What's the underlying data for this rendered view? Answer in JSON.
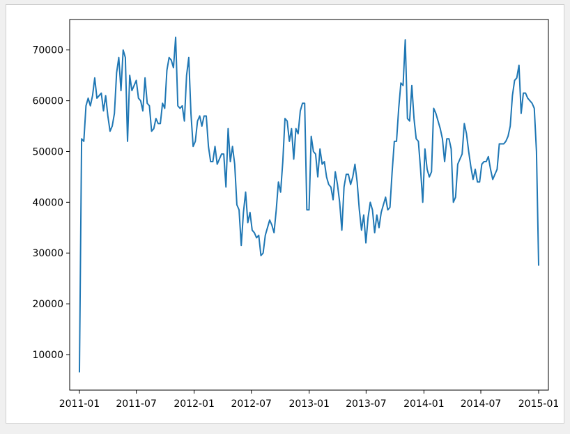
{
  "chart_data": {
    "type": "line",
    "title": "",
    "xlabel": "",
    "ylabel": "",
    "x_start": "2011-01-01",
    "x_end": "2015-01-01",
    "xlim": [
      "2010-12-01",
      "2015-02-01"
    ],
    "ylim": [
      3000,
      76000
    ],
    "x_tick_labels": [
      "2011-01",
      "2011-07",
      "2012-01",
      "2012-07",
      "2013-01",
      "2013-07",
      "2014-01",
      "2014-07",
      "2015-01"
    ],
    "x_tick_dates": [
      "2011-01-01",
      "2011-07-01",
      "2012-01-01",
      "2012-07-01",
      "2013-01-01",
      "2013-07-01",
      "2014-01-01",
      "2014-07-01",
      "2015-01-01"
    ],
    "y_ticks": [
      10000,
      20000,
      30000,
      40000,
      50000,
      60000,
      70000
    ],
    "y_tick_labels": [
      "10000",
      "20000",
      "30000",
      "40000",
      "50000",
      "60000",
      "70000"
    ],
    "grid": false,
    "line_color": "#1f77b4",
    "series": [
      {
        "values": [
          6500,
          52500,
          52000,
          59000,
          60500,
          59000,
          61000,
          64500,
          60500,
          61000,
          61500,
          58000,
          61000,
          57000,
          54000,
          55000,
          57500,
          65500,
          68500,
          62000,
          70000,
          68500,
          52000,
          65000,
          62000,
          63000,
          64000,
          60500,
          60000,
          58000,
          64500,
          59500,
          59000,
          54000,
          54500,
          56500,
          55500,
          55500,
          59500,
          58500,
          66000,
          68500,
          68000,
          66500,
          72500,
          59000,
          58500,
          59000,
          56000,
          65000,
          68500,
          57500,
          51000,
          52000,
          56000,
          57000,
          55000,
          57000,
          57000,
          51000,
          48000,
          48000,
          51000,
          47500,
          48500,
          49500,
          49500,
          43000,
          54500,
          48000,
          51000,
          47500,
          39500,
          38500,
          31500,
          38000,
          42000,
          36000,
          38000,
          34500,
          34000,
          33000,
          33500,
          29500,
          30000,
          33500,
          35000,
          36500,
          35500,
          34000,
          38500,
          44000,
          42000,
          48000,
          56500,
          56000,
          52000,
          54500,
          48500,
          54500,
          53500,
          58000,
          59500,
          59500,
          38500,
          38500,
          53000,
          50000,
          49500,
          45000,
          50500,
          47500,
          48000,
          45000,
          43500,
          43000,
          40500,
          46000,
          43500,
          40000,
          34500,
          43000,
          45500,
          45500,
          43500,
          45000,
          47500,
          44000,
          38500,
          34500,
          37500,
          32000,
          37000,
          40000,
          38500,
          34000,
          37500,
          35000,
          38000,
          39500,
          41000,
          38500,
          39000,
          46000,
          52000,
          52000,
          58500,
          63500,
          63000,
          72000,
          56500,
          56000,
          63000,
          56500,
          52500,
          52000,
          46500,
          40000,
          50500,
          46500,
          45000,
          46000,
          58500,
          57500,
          56000,
          54500,
          52500,
          48000,
          52500,
          52500,
          50500,
          40000,
          41000,
          47500,
          48500,
          49500,
          55500,
          53500,
          50000,
          47000,
          44500,
          46500,
          44000,
          44000,
          47500,
          48000,
          48000,
          49000,
          46500,
          44500,
          45500,
          46500,
          51500,
          51500,
          51500,
          52000,
          53000,
          55000,
          61000,
          64000,
          64500,
          67000,
          57500,
          61500,
          61500,
          60500,
          60000,
          59500,
          58500,
          50000,
          27500
        ]
      }
    ]
  }
}
